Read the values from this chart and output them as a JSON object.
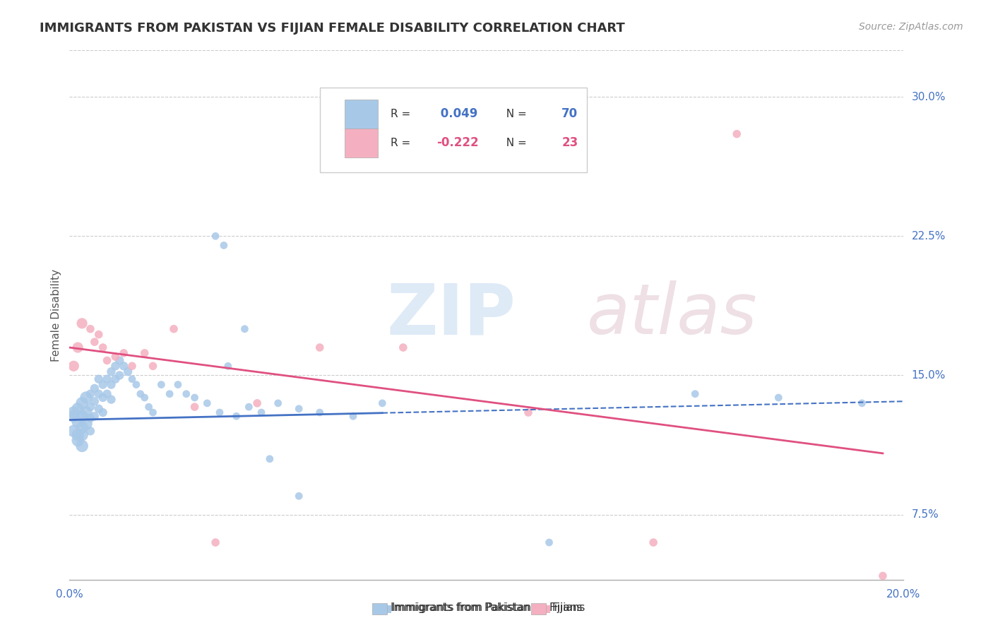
{
  "title": "IMMIGRANTS FROM PAKISTAN VS FIJIAN FEMALE DISABILITY CORRELATION CHART",
  "source": "Source: ZipAtlas.com",
  "ylabel": "Female Disability",
  "legend_label1": "Immigrants from Pakistan",
  "legend_label2": "Fijians",
  "r1": 0.049,
  "n1": 70,
  "r2": -0.222,
  "n2": 23,
  "color1": "#a8c8e8",
  "color2": "#f4b0c0",
  "trendline1_color": "#4472c4",
  "trendline2_color": "#e05080",
  "bg_color": "#ffffff",
  "grid_color": "#cccccc",
  "title_color": "#333333",
  "xmin": 0.0,
  "xmax": 0.2,
  "ymin": 0.04,
  "ymax": 0.325,
  "yticks": [
    0.075,
    0.15,
    0.225,
    0.3
  ],
  "ytick_labels": [
    "7.5%",
    "15.0%",
    "22.5%",
    "30.0%"
  ],
  "blue_x": [
    0.001,
    0.001,
    0.001,
    0.002,
    0.002,
    0.002,
    0.002,
    0.003,
    0.003,
    0.003,
    0.003,
    0.003,
    0.004,
    0.004,
    0.004,
    0.005,
    0.005,
    0.005,
    0.005,
    0.006,
    0.006,
    0.006,
    0.007,
    0.007,
    0.007,
    0.008,
    0.008,
    0.008,
    0.009,
    0.009,
    0.01,
    0.01,
    0.01,
    0.011,
    0.011,
    0.012,
    0.012,
    0.013,
    0.014,
    0.015,
    0.016,
    0.017,
    0.018,
    0.019,
    0.02,
    0.022,
    0.024,
    0.026,
    0.028,
    0.03,
    0.033,
    0.036,
    0.04,
    0.043,
    0.046,
    0.05,
    0.055,
    0.06,
    0.068,
    0.075,
    0.035,
    0.037,
    0.038,
    0.042,
    0.048,
    0.055,
    0.115,
    0.15,
    0.17,
    0.19
  ],
  "blue_y": [
    0.13,
    0.128,
    0.12,
    0.132,
    0.125,
    0.118,
    0.115,
    0.135,
    0.128,
    0.122,
    0.118,
    0.112,
    0.138,
    0.13,
    0.124,
    0.14,
    0.133,
    0.127,
    0.12,
    0.143,
    0.136,
    0.128,
    0.148,
    0.14,
    0.132,
    0.145,
    0.138,
    0.13,
    0.148,
    0.14,
    0.152,
    0.145,
    0.137,
    0.155,
    0.148,
    0.158,
    0.15,
    0.155,
    0.152,
    0.148,
    0.145,
    0.14,
    0.138,
    0.133,
    0.13,
    0.145,
    0.14,
    0.145,
    0.14,
    0.138,
    0.135,
    0.13,
    0.128,
    0.133,
    0.13,
    0.135,
    0.132,
    0.13,
    0.128,
    0.135,
    0.225,
    0.22,
    0.155,
    0.175,
    0.105,
    0.085,
    0.06,
    0.14,
    0.138,
    0.135
  ],
  "pink_x": [
    0.001,
    0.002,
    0.003,
    0.005,
    0.006,
    0.007,
    0.008,
    0.009,
    0.011,
    0.013,
    0.015,
    0.018,
    0.02,
    0.025,
    0.03,
    0.035,
    0.045,
    0.06,
    0.08,
    0.11,
    0.14,
    0.16,
    0.195
  ],
  "pink_y": [
    0.155,
    0.165,
    0.178,
    0.175,
    0.168,
    0.172,
    0.165,
    0.158,
    0.16,
    0.162,
    0.155,
    0.162,
    0.155,
    0.175,
    0.133,
    0.06,
    0.135,
    0.165,
    0.165,
    0.13,
    0.06,
    0.28,
    0.042
  ],
  "trend1_x0": 0.0,
  "trend1_x1": 0.2,
  "trend1_y0": 0.126,
  "trend1_y1": 0.136,
  "trend1_dash_from": 0.075,
  "trend2_x0": 0.0,
  "trend2_x1": 0.195,
  "trend2_y0": 0.165,
  "trend2_y1": 0.108
}
